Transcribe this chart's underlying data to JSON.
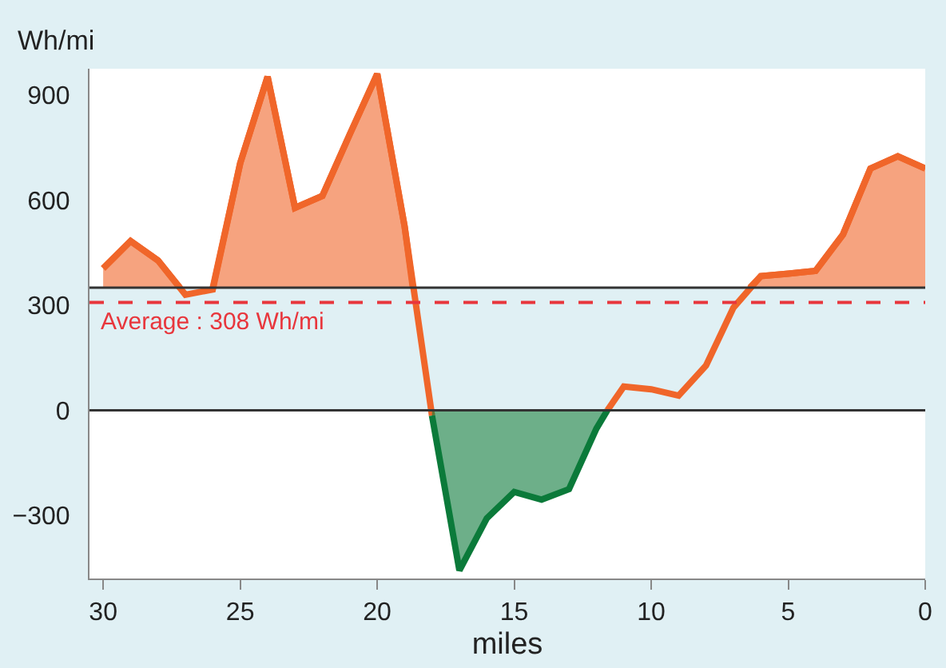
{
  "chart_data": {
    "type": "area",
    "xlabel": "miles",
    "ylabel": "Wh/mi",
    "xlim": [
      30.5,
      0
    ],
    "xticks": [
      30,
      25,
      20,
      15,
      10,
      5,
      0
    ],
    "ylim": [
      -480,
      975
    ],
    "yticks": [
      {
        "value": -300,
        "label": "−300"
      },
      0,
      300,
      600,
      900
    ],
    "series": [
      {
        "type": "line",
        "color": "#f0662a",
        "x": [
          30,
          29,
          28,
          27,
          26,
          25,
          24,
          23,
          22,
          21,
          20,
          19,
          18,
          null,
          11.6,
          11,
          10,
          9,
          8,
          7,
          6,
          5,
          4,
          3,
          2,
          1,
          0
        ],
        "values": [
          405,
          483,
          428,
          330,
          345,
          705,
          952,
          578,
          612,
          788,
          960,
          525,
          -15,
          null,
          0,
          68,
          60,
          42,
          128,
          293,
          383,
          390,
          398,
          502,
          690,
          725,
          690
        ]
      },
      {
        "color": "#f0662a",
        "x": [
          30,
          29,
          28,
          27.2
        ],
        "values": [
          405,
          483,
          428,
          350
        ]
      },
      {
        "color": "#f0662a",
        "x": [
          26,
          25,
          24,
          23,
          22,
          21,
          20,
          19,
          18.7
        ],
        "values": [
          350,
          705,
          952,
          578,
          612,
          788,
          960,
          525,
          350
        ]
      },
      {
        "color": "#f0662a",
        "x": [
          6.4,
          6,
          5,
          4,
          3,
          2,
          1,
          0
        ],
        "values": [
          350,
          383,
          390,
          398,
          502,
          690,
          725,
          690
        ]
      },
      {
        "color": "#0b7a3a",
        "x": [
          18,
          17,
          16,
          15,
          14,
          13,
          12,
          11.6
        ],
        "values": [
          -15,
          -457,
          -308,
          -233,
          -255,
          -225,
          -52,
          0
        ]
      }
    ],
    "ref_lines": [
      {
        "axis": "y",
        "value": 350,
        "color": "#333333",
        "line_style": "solid"
      },
      {
        "axis": "y",
        "value": 0,
        "color": "#333333",
        "line_style": "solid"
      },
      {
        "axis": "y",
        "value": 308,
        "color": "#e8363c",
        "line_style": "dashed",
        "label": "Average : 308 Wh/mi"
      }
    ],
    "bands": [
      {
        "axis": "y",
        "from": 0,
        "to": 350,
        "color": "#e0f0f4"
      }
    ],
    "grid": false,
    "marker": "none",
    "line_style": "solid"
  }
}
